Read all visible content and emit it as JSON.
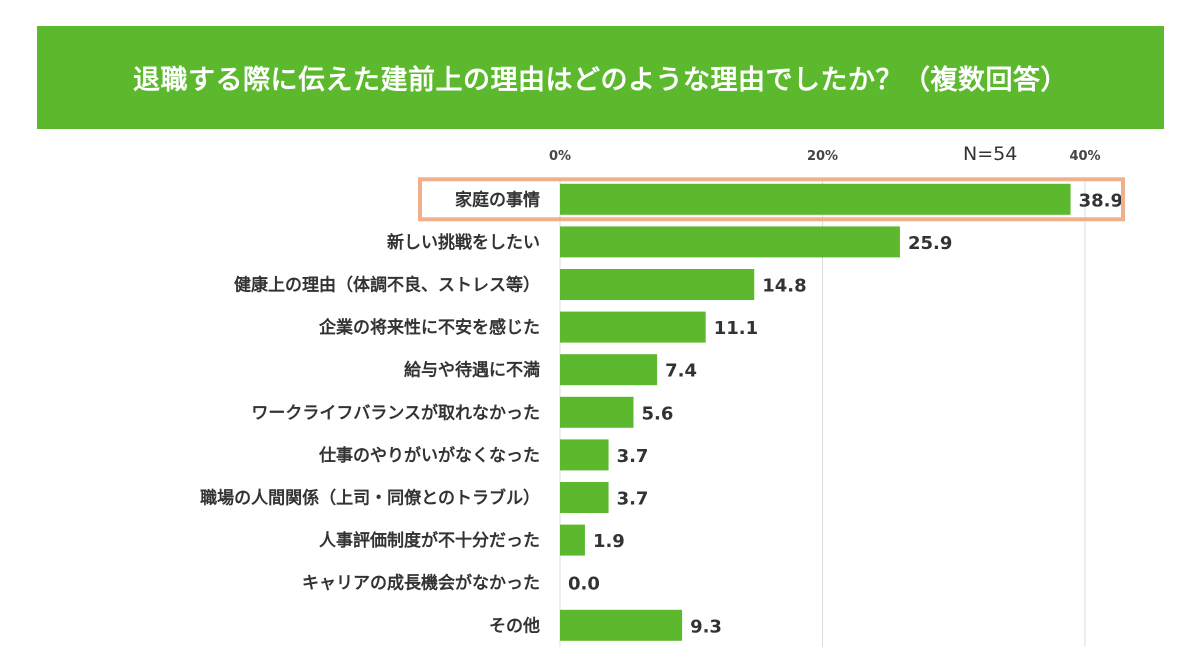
{
  "chart_data": {
    "type": "bar",
    "orientation": "horizontal",
    "title": "退職する際に伝えた建前上の理由はどのような理由でしたか？（複数回答）",
    "sample_size": "N=54",
    "xlim": [
      0,
      40
    ],
    "ticks": [
      {
        "value": 0,
        "label": "0%"
      },
      {
        "value": 20,
        "label": "20%"
      },
      {
        "value": 40,
        "label": "40%"
      }
    ],
    "categories": [
      "家庭の事情",
      "新しい挑戦をしたい",
      "健康上の理由（体調不良、ストレス等）",
      "企業の将来性に不安を感じた",
      "給与や待遇に不満",
      "ワークライフバランスが取れなかった",
      "仕事のやりがいがなくなった",
      "職場の人間関係（上司・同僚とのトラブル）",
      "人事評価制度が不十分だった",
      "キャリアの成長機会がなかった",
      "その他"
    ],
    "values": [
      38.9,
      25.9,
      14.8,
      11.1,
      7.4,
      5.6,
      3.7,
      3.7,
      1.9,
      0.0,
      9.3
    ],
    "value_labels": [
      "38.9",
      "25.9",
      "14.8",
      "11.1",
      "7.4",
      "5.6",
      "3.7",
      "3.7",
      "1.9",
      "0.0",
      "9.3"
    ],
    "highlighted_category": "家庭の事情"
  },
  "colors": {
    "bar": "#5cb92e",
    "banner": "#5cb92e",
    "highlight_border": "#f0b08a",
    "gridline": "#dddddd"
  }
}
